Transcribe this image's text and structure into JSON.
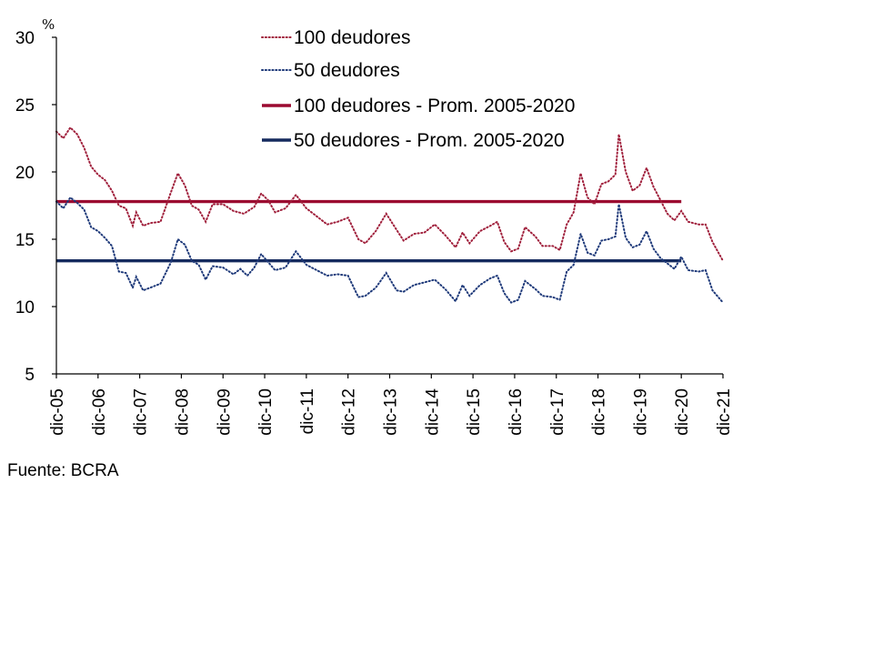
{
  "chart_data": {
    "type": "line",
    "ylabel": "%",
    "ylim": [
      5,
      30
    ],
    "yticks": [
      5,
      10,
      15,
      20,
      25,
      30
    ],
    "xlim": [
      "2005-12",
      "2021-12"
    ],
    "x_tick_labels": [
      "dic-05",
      "dic-06",
      "dic-07",
      "dic-08",
      "dic-09",
      "dic-10",
      "dic-11",
      "dic-12",
      "dic-13",
      "dic-14",
      "dic-15",
      "dic-16",
      "dic-17",
      "dic-18",
      "dic-19",
      "dic-20",
      "dic-21"
    ],
    "grid": false,
    "legend_position": "top-center",
    "source": "Fuente: BCRA",
    "series": [
      {
        "name": "100 deudores",
        "style": "dotted",
        "color": "#a0203c",
        "points": [
          [
            "2005-12",
            23.0
          ],
          [
            "2006-02",
            22.5
          ],
          [
            "2006-04",
            23.3
          ],
          [
            "2006-06",
            22.8
          ],
          [
            "2006-08",
            21.8
          ],
          [
            "2006-10",
            20.4
          ],
          [
            "2006-12",
            19.8
          ],
          [
            "2007-02",
            19.4
          ],
          [
            "2007-04",
            18.6
          ],
          [
            "2007-06",
            17.5
          ],
          [
            "2007-08",
            17.3
          ],
          [
            "2007-10",
            16.0
          ],
          [
            "2007-11",
            17.0
          ],
          [
            "2008-01",
            16.0
          ],
          [
            "2008-03",
            16.2
          ],
          [
            "2008-06",
            16.3
          ],
          [
            "2008-09",
            18.5
          ],
          [
            "2008-11",
            19.9
          ],
          [
            "2009-01",
            19.0
          ],
          [
            "2009-03",
            17.5
          ],
          [
            "2009-05",
            17.2
          ],
          [
            "2009-07",
            16.3
          ],
          [
            "2009-09",
            17.6
          ],
          [
            "2009-12",
            17.6
          ],
          [
            "2010-03",
            17.1
          ],
          [
            "2010-06",
            16.9
          ],
          [
            "2010-09",
            17.4
          ],
          [
            "2010-11",
            18.4
          ],
          [
            "2011-01",
            17.9
          ],
          [
            "2011-03",
            17.0
          ],
          [
            "2011-06",
            17.3
          ],
          [
            "2011-09",
            18.3
          ],
          [
            "2011-12",
            17.3
          ],
          [
            "2012-03",
            16.7
          ],
          [
            "2012-06",
            16.1
          ],
          [
            "2012-09",
            16.3
          ],
          [
            "2012-12",
            16.6
          ],
          [
            "2013-03",
            15.0
          ],
          [
            "2013-05",
            14.7
          ],
          [
            "2013-08",
            15.6
          ],
          [
            "2013-11",
            16.9
          ],
          [
            "2014-02",
            15.7
          ],
          [
            "2014-04",
            14.9
          ],
          [
            "2014-07",
            15.4
          ],
          [
            "2014-10",
            15.5
          ],
          [
            "2015-01",
            16.1
          ],
          [
            "2015-04",
            15.3
          ],
          [
            "2015-07",
            14.4
          ],
          [
            "2015-09",
            15.5
          ],
          [
            "2015-11",
            14.7
          ],
          [
            "2016-02",
            15.6
          ],
          [
            "2016-05",
            16.0
          ],
          [
            "2016-07",
            16.3
          ],
          [
            "2016-09",
            14.8
          ],
          [
            "2016-11",
            14.1
          ],
          [
            "2017-01",
            14.3
          ],
          [
            "2017-03",
            15.9
          ],
          [
            "2017-06",
            15.2
          ],
          [
            "2017-08",
            14.5
          ],
          [
            "2017-11",
            14.5
          ],
          [
            "2018-01",
            14.2
          ],
          [
            "2018-03",
            16.1
          ],
          [
            "2018-05",
            17.0
          ],
          [
            "2018-07",
            19.9
          ],
          [
            "2018-09",
            18.1
          ],
          [
            "2018-11",
            17.6
          ],
          [
            "2019-01",
            19.1
          ],
          [
            "2019-03",
            19.3
          ],
          [
            "2019-05",
            19.8
          ],
          [
            "2019-06",
            22.8
          ],
          [
            "2019-08",
            20.0
          ],
          [
            "2019-10",
            18.6
          ],
          [
            "2019-12",
            19.0
          ],
          [
            "2020-02",
            20.3
          ],
          [
            "2020-04",
            18.9
          ],
          [
            "2020-06",
            17.9
          ],
          [
            "2020-08",
            16.9
          ],
          [
            "2020-10",
            16.4
          ],
          [
            "2020-12",
            17.1
          ],
          [
            "2021-02",
            16.3
          ],
          [
            "2021-05",
            16.1
          ],
          [
            "2021-07",
            16.1
          ],
          [
            "2021-09",
            14.8
          ],
          [
            "2021-12",
            13.4
          ]
        ]
      },
      {
        "name": "50 deudores",
        "style": "dotted",
        "color": "#1f3a7a",
        "points": [
          [
            "2005-12",
            17.8
          ],
          [
            "2006-02",
            17.3
          ],
          [
            "2006-04",
            18.1
          ],
          [
            "2006-06",
            17.7
          ],
          [
            "2006-08",
            17.2
          ],
          [
            "2006-10",
            15.9
          ],
          [
            "2006-12",
            15.6
          ],
          [
            "2007-02",
            15.1
          ],
          [
            "2007-04",
            14.5
          ],
          [
            "2007-06",
            12.6
          ],
          [
            "2007-08",
            12.5
          ],
          [
            "2007-10",
            11.4
          ],
          [
            "2007-11",
            12.2
          ],
          [
            "2008-01",
            11.2
          ],
          [
            "2008-03",
            11.4
          ],
          [
            "2008-06",
            11.7
          ],
          [
            "2008-09",
            13.3
          ],
          [
            "2008-11",
            15.0
          ],
          [
            "2009-01",
            14.6
          ],
          [
            "2009-03",
            13.4
          ],
          [
            "2009-05",
            13.1
          ],
          [
            "2009-07",
            12.0
          ],
          [
            "2009-09",
            13.0
          ],
          [
            "2009-12",
            12.9
          ],
          [
            "2010-03",
            12.4
          ],
          [
            "2010-05",
            12.8
          ],
          [
            "2010-07",
            12.3
          ],
          [
            "2010-09",
            12.9
          ],
          [
            "2010-11",
            13.9
          ],
          [
            "2011-01",
            13.3
          ],
          [
            "2011-03",
            12.7
          ],
          [
            "2011-06",
            12.9
          ],
          [
            "2011-09",
            14.1
          ],
          [
            "2011-12",
            13.1
          ],
          [
            "2012-03",
            12.7
          ],
          [
            "2012-06",
            12.3
          ],
          [
            "2012-09",
            12.4
          ],
          [
            "2012-12",
            12.3
          ],
          [
            "2013-03",
            10.7
          ],
          [
            "2013-05",
            10.8
          ],
          [
            "2013-08",
            11.4
          ],
          [
            "2013-11",
            12.5
          ],
          [
            "2014-02",
            11.2
          ],
          [
            "2014-04",
            11.1
          ],
          [
            "2014-07",
            11.6
          ],
          [
            "2014-10",
            11.8
          ],
          [
            "2015-01",
            12.0
          ],
          [
            "2015-04",
            11.3
          ],
          [
            "2015-07",
            10.4
          ],
          [
            "2015-09",
            11.6
          ],
          [
            "2015-11",
            10.8
          ],
          [
            "2016-02",
            11.6
          ],
          [
            "2016-05",
            12.1
          ],
          [
            "2016-07",
            12.3
          ],
          [
            "2016-09",
            11.0
          ],
          [
            "2016-11",
            10.3
          ],
          [
            "2017-01",
            10.5
          ],
          [
            "2017-03",
            11.9
          ],
          [
            "2017-06",
            11.3
          ],
          [
            "2017-08",
            10.8
          ],
          [
            "2017-11",
            10.7
          ],
          [
            "2018-01",
            10.5
          ],
          [
            "2018-03",
            12.6
          ],
          [
            "2018-05",
            13.1
          ],
          [
            "2018-07",
            15.4
          ],
          [
            "2018-09",
            14.0
          ],
          [
            "2018-11",
            13.8
          ],
          [
            "2019-01",
            14.9
          ],
          [
            "2019-03",
            15.0
          ],
          [
            "2019-05",
            15.2
          ],
          [
            "2019-06",
            17.6
          ],
          [
            "2019-08",
            15.1
          ],
          [
            "2019-10",
            14.4
          ],
          [
            "2019-12",
            14.6
          ],
          [
            "2020-02",
            15.6
          ],
          [
            "2020-04",
            14.3
          ],
          [
            "2020-06",
            13.6
          ],
          [
            "2020-08",
            13.2
          ],
          [
            "2020-10",
            12.8
          ],
          [
            "2020-12",
            13.7
          ],
          [
            "2021-02",
            12.7
          ],
          [
            "2021-05",
            12.6
          ],
          [
            "2021-07",
            12.7
          ],
          [
            "2021-09",
            11.2
          ],
          [
            "2021-12",
            10.3
          ]
        ]
      },
      {
        "name": "100 deudores - Prom. 2005-2020",
        "style": "solid",
        "color": "#9b0a30",
        "points": [
          [
            "2005-12",
            17.8
          ],
          [
            "2020-12",
            17.8
          ]
        ]
      },
      {
        "name": "50 deudores - Prom. 2005-2020",
        "style": "solid",
        "color": "#152a5e",
        "points": [
          [
            "2005-12",
            13.4
          ],
          [
            "2020-12",
            13.4
          ]
        ]
      }
    ]
  }
}
